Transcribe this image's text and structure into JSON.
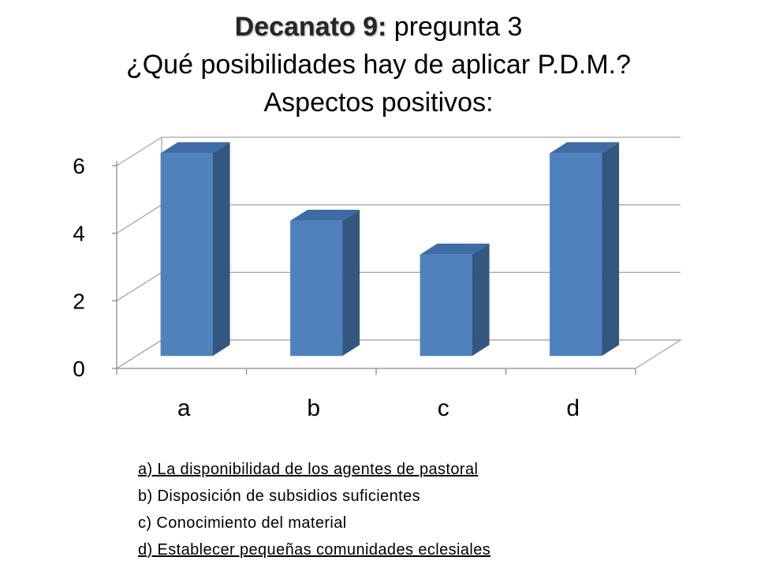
{
  "title": {
    "bold": "Decanato 9:",
    "rest": " pregunta 3",
    "line2": "¿Qué posibilidades hay de aplicar P.D.M.?",
    "line3": "Aspectos positivos:"
  },
  "chart_data": {
    "type": "bar",
    "title": "",
    "xlabel": "",
    "ylabel": "",
    "categories": [
      "a",
      "b",
      "c",
      "d"
    ],
    "values": [
      6,
      4,
      3,
      6
    ],
    "ylim": [
      0,
      6
    ],
    "yticks": [
      0,
      2,
      4,
      6
    ],
    "grid": true,
    "style": "3d",
    "colors": {
      "front": "#4F81BD",
      "top": "#3E6CA4",
      "side": "#34577F"
    }
  },
  "legend": {
    "items": [
      {
        "text": "a) La disponibilidad de los agentes de pastoral",
        "underline": true
      },
      {
        "text": "b) Disposición de subsidios suficientes",
        "underline": false
      },
      {
        "text": "c) Conocimiento del material",
        "underline": false
      },
      {
        "text": "d) Establecer pequeñas comunidades eclesiales",
        "underline": true
      }
    ]
  }
}
